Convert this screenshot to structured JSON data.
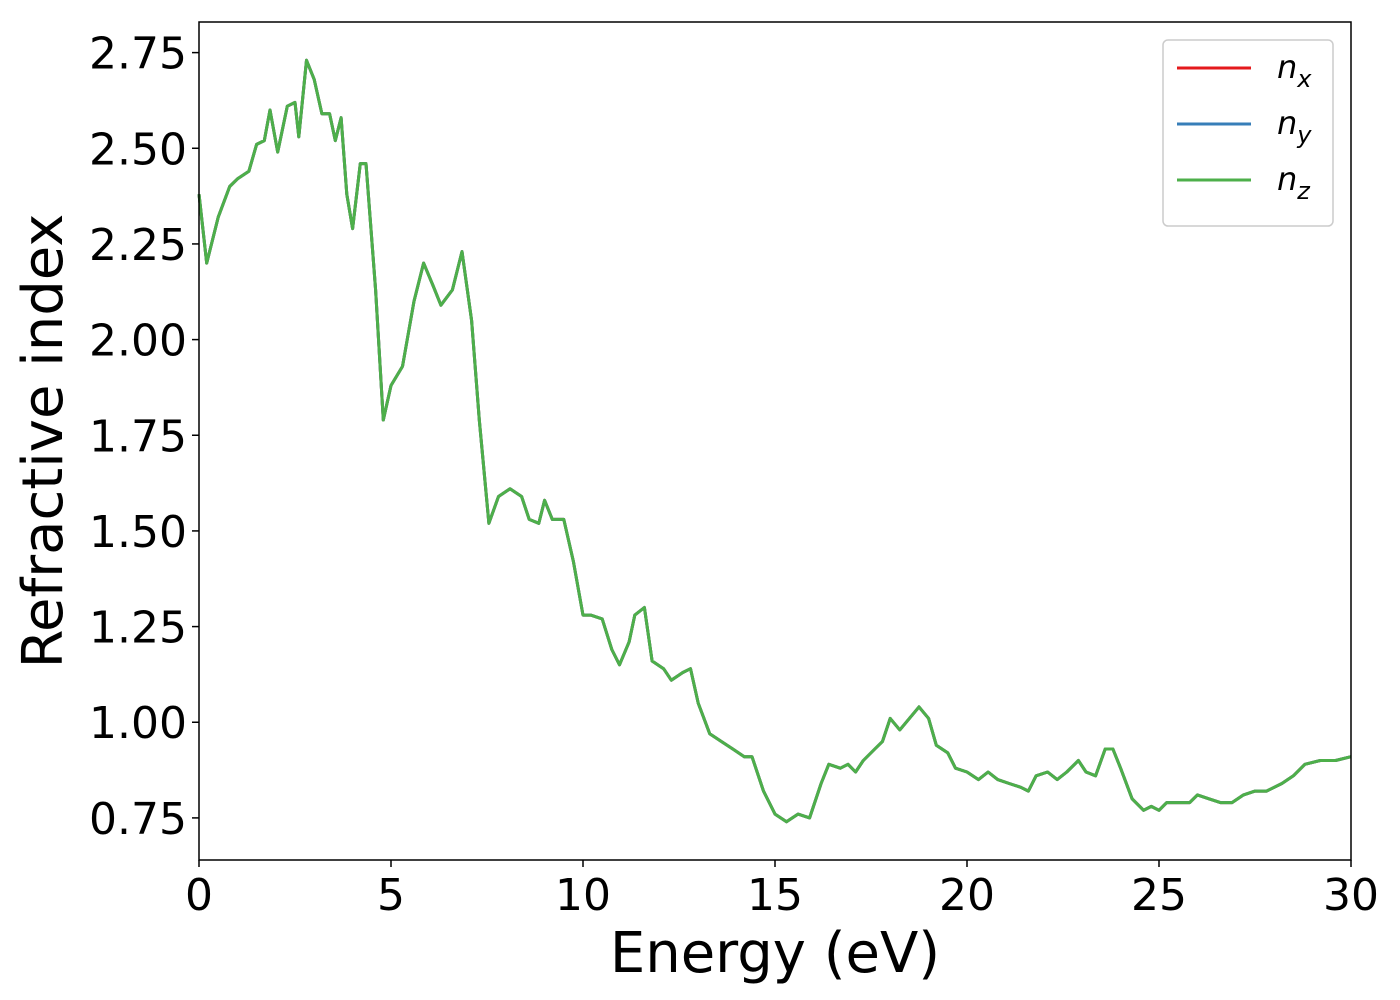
{
  "chart_data": {
    "type": "line",
    "xlabel": "Energy (eV)",
    "ylabel": "Refractive index",
    "xlim": [
      0,
      30
    ],
    "ylim": [
      0.64,
      2.83
    ],
    "xticks": [
      0,
      5,
      10,
      15,
      20,
      25,
      30
    ],
    "yticks": [
      {
        "value": 0.75,
        "label": "0.75"
      },
      {
        "value": 1,
        "label": "1.00"
      },
      {
        "value": 1.25,
        "label": "1.25"
      },
      {
        "value": 1.5,
        "label": "1.50"
      },
      {
        "value": 1.75,
        "label": "1.75"
      },
      {
        "value": 2,
        "label": "2.00"
      },
      {
        "value": 2.25,
        "label": "2.25"
      },
      {
        "value": 2.5,
        "label": "2.50"
      },
      {
        "value": 2.75,
        "label": "2.75"
      }
    ],
    "legend": "upper right",
    "x": [
      0,
      0.2,
      0.5,
      0.8,
      1.0,
      1.3,
      1.5,
      1.7,
      1.85,
      2.05,
      2.3,
      2.5,
      2.6,
      2.8,
      3.0,
      3.2,
      3.4,
      3.55,
      3.7,
      3.85,
      4.0,
      4.2,
      4.35,
      4.6,
      4.8,
      5.0,
      5.3,
      5.6,
      5.85,
      6.1,
      6.3,
      6.6,
      6.85,
      7.1,
      7.3,
      7.55,
      7.8,
      8.1,
      8.4,
      8.6,
      8.85,
      9.0,
      9.2,
      9.5,
      9.75,
      10.0,
      10.2,
      10.5,
      10.75,
      10.95,
      11.2,
      11.35,
      11.6,
      11.8,
      12.1,
      12.3,
      12.6,
      12.8,
      13.0,
      13.3,
      13.6,
      13.9,
      14.2,
      14.4,
      14.7,
      15.0,
      15.3,
      15.6,
      15.9,
      16.2,
      16.4,
      16.7,
      16.9,
      17.1,
      17.3,
      17.6,
      17.8,
      18.0,
      18.25,
      18.5,
      18.75,
      19.0,
      19.2,
      19.5,
      19.7,
      20.0,
      20.3,
      20.55,
      20.8,
      21.1,
      21.4,
      21.6,
      21.8,
      22.1,
      22.35,
      22.6,
      22.9,
      23.1,
      23.35,
      23.6,
      23.8,
      24.0,
      24.3,
      24.6,
      24.8,
      25.0,
      25.2,
      25.6,
      25.8,
      26.0,
      26.3,
      26.6,
      26.9,
      27.2,
      27.5,
      27.8,
      28.2,
      28.5,
      28.8,
      29.2,
      29.6,
      30.0
    ],
    "series": [
      {
        "name": "nx",
        "color": "#e41a1c",
        "values": [
          2.38,
          2.2,
          2.32,
          2.4,
          2.42,
          2.44,
          2.51,
          2.52,
          2.6,
          2.49,
          2.61,
          2.62,
          2.53,
          2.73,
          2.68,
          2.59,
          2.59,
          2.52,
          2.58,
          2.38,
          2.29,
          2.46,
          2.46,
          2.13,
          1.79,
          1.88,
          1.93,
          2.1,
          2.2,
          2.14,
          2.09,
          2.13,
          2.23,
          2.05,
          1.79,
          1.52,
          1.59,
          1.61,
          1.59,
          1.53,
          1.52,
          1.58,
          1.53,
          1.53,
          1.42,
          1.28,
          1.28,
          1.27,
          1.19,
          1.15,
          1.21,
          1.28,
          1.3,
          1.16,
          1.14,
          1.11,
          1.13,
          1.14,
          1.05,
          0.97,
          0.95,
          0.93,
          0.91,
          0.91,
          0.82,
          0.76,
          0.74,
          0.76,
          0.75,
          0.84,
          0.89,
          0.88,
          0.89,
          0.87,
          0.9,
          0.93,
          0.95,
          1.01,
          0.98,
          1.01,
          1.04,
          1.01,
          0.94,
          0.92,
          0.88,
          0.87,
          0.85,
          0.87,
          0.85,
          0.84,
          0.83,
          0.82,
          0.86,
          0.87,
          0.85,
          0.87,
          0.9,
          0.87,
          0.86,
          0.93,
          0.93,
          0.88,
          0.8,
          0.77,
          0.78,
          0.77,
          0.79,
          0.79,
          0.79,
          0.81,
          0.8,
          0.79,
          0.79,
          0.81,
          0.82,
          0.82,
          0.84,
          0.86,
          0.89,
          0.9,
          0.9,
          0.91
        ]
      },
      {
        "name": "ny",
        "color": "#377eb8",
        "values": [
          2.38,
          2.2,
          2.32,
          2.4,
          2.42,
          2.44,
          2.51,
          2.52,
          2.6,
          2.49,
          2.61,
          2.62,
          2.53,
          2.73,
          2.68,
          2.59,
          2.59,
          2.52,
          2.58,
          2.38,
          2.29,
          2.46,
          2.46,
          2.13,
          1.79,
          1.88,
          1.93,
          2.1,
          2.2,
          2.14,
          2.09,
          2.13,
          2.23,
          2.05,
          1.79,
          1.52,
          1.59,
          1.61,
          1.59,
          1.53,
          1.52,
          1.58,
          1.53,
          1.53,
          1.42,
          1.28,
          1.28,
          1.27,
          1.19,
          1.15,
          1.21,
          1.28,
          1.3,
          1.16,
          1.14,
          1.11,
          1.13,
          1.14,
          1.05,
          0.97,
          0.95,
          0.93,
          0.91,
          0.91,
          0.82,
          0.76,
          0.74,
          0.76,
          0.75,
          0.84,
          0.89,
          0.88,
          0.89,
          0.87,
          0.9,
          0.93,
          0.95,
          1.01,
          0.98,
          1.01,
          1.04,
          1.01,
          0.94,
          0.92,
          0.88,
          0.87,
          0.85,
          0.87,
          0.85,
          0.84,
          0.83,
          0.82,
          0.86,
          0.87,
          0.85,
          0.87,
          0.9,
          0.87,
          0.86,
          0.93,
          0.93,
          0.88,
          0.8,
          0.77,
          0.78,
          0.77,
          0.79,
          0.79,
          0.79,
          0.81,
          0.8,
          0.79,
          0.79,
          0.81,
          0.82,
          0.82,
          0.84,
          0.86,
          0.89,
          0.9,
          0.9,
          0.91
        ]
      },
      {
        "name": "nz",
        "color": "#4daf4a",
        "values": [
          2.38,
          2.2,
          2.32,
          2.4,
          2.42,
          2.44,
          2.51,
          2.52,
          2.6,
          2.49,
          2.61,
          2.62,
          2.53,
          2.73,
          2.68,
          2.59,
          2.59,
          2.52,
          2.58,
          2.38,
          2.29,
          2.46,
          2.46,
          2.13,
          1.79,
          1.88,
          1.93,
          2.1,
          2.2,
          2.14,
          2.09,
          2.13,
          2.23,
          2.05,
          1.79,
          1.52,
          1.59,
          1.61,
          1.59,
          1.53,
          1.52,
          1.58,
          1.53,
          1.53,
          1.42,
          1.28,
          1.28,
          1.27,
          1.19,
          1.15,
          1.21,
          1.28,
          1.3,
          1.16,
          1.14,
          1.11,
          1.13,
          1.14,
          1.05,
          0.97,
          0.95,
          0.93,
          0.91,
          0.91,
          0.82,
          0.76,
          0.74,
          0.76,
          0.75,
          0.84,
          0.89,
          0.88,
          0.89,
          0.87,
          0.9,
          0.93,
          0.95,
          1.01,
          0.98,
          1.01,
          1.04,
          1.01,
          0.94,
          0.92,
          0.88,
          0.87,
          0.85,
          0.87,
          0.85,
          0.84,
          0.83,
          0.82,
          0.86,
          0.87,
          0.85,
          0.87,
          0.9,
          0.87,
          0.86,
          0.93,
          0.93,
          0.88,
          0.8,
          0.77,
          0.78,
          0.77,
          0.79,
          0.79,
          0.79,
          0.81,
          0.8,
          0.79,
          0.79,
          0.81,
          0.82,
          0.82,
          0.84,
          0.86,
          0.89,
          0.9,
          0.9,
          0.91
        ]
      }
    ]
  }
}
